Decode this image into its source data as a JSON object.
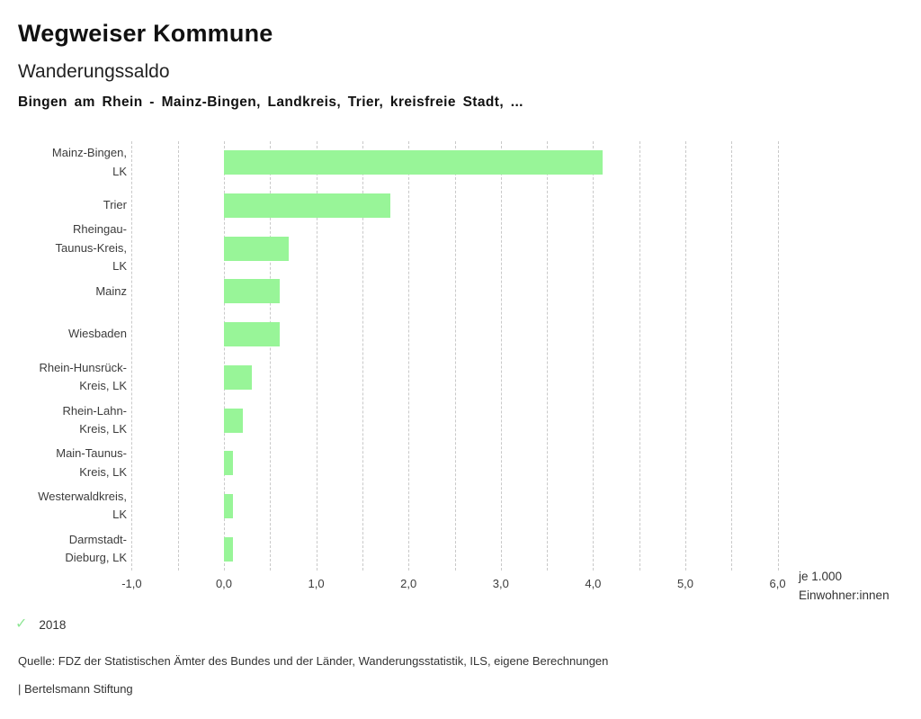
{
  "header": {
    "app_title": "Wegweiser Kommune",
    "chart_title": "Wanderungssaldo",
    "selection_line": "Bingen am Rhein - Mainz-Bingen, Landkreis, Trier, kreisfreie Stadt, ..."
  },
  "chart_data": {
    "type": "bar",
    "orientation": "horizontal",
    "title": "Wanderungssaldo",
    "categories": [
      "Mainz-Bingen, LK",
      "Trier",
      "Rheingau-Taunus-Kreis, LK",
      "Mainz",
      "Wiesbaden",
      "Rhein-Hunsrück-Kreis, LK",
      "Rhein-Lahn-Kreis, LK",
      "Main-Taunus-Kreis, LK",
      "Westerwaldkreis, LK",
      "Darmstadt-Dieburg, LK"
    ],
    "label_lines": [
      [
        "Mainz-Bingen,",
        "LK"
      ],
      [
        "Trier"
      ],
      [
        "Rheingau-",
        "Taunus-Kreis,",
        "LK"
      ],
      [
        "Mainz"
      ],
      [
        "Wiesbaden"
      ],
      [
        "Rhein-Hunsrück-",
        "Kreis, LK"
      ],
      [
        "Rhein-Lahn-",
        "Kreis, LK"
      ],
      [
        "Main-Taunus-",
        "Kreis, LK"
      ],
      [
        "Westerwaldkreis,",
        "LK"
      ],
      [
        "Darmstadt-",
        "Dieburg, LK"
      ]
    ],
    "series": [
      {
        "name": "2018",
        "values": [
          4.1,
          1.8,
          0.7,
          0.6,
          0.6,
          0.3,
          0.2,
          0.1,
          0.1,
          0.1
        ]
      }
    ],
    "xlabel": "je 1.000 Einwohner:innen",
    "unit_lines": [
      "je 1.000",
      "Einwohner:innen"
    ],
    "xlim": [
      -1.0,
      6.0
    ],
    "grid": true,
    "grid_step": 0.5,
    "xticks": {
      "values": [
        -1,
        0,
        1,
        2,
        3,
        4,
        5,
        6
      ],
      "labels": [
        "-1,0",
        "0,0",
        "1,0",
        "2,0",
        "3,0",
        "4,0",
        "5,0",
        "6,0"
      ]
    },
    "bar_color": "#98f598",
    "grid_color": "#c9c9c9",
    "legend_position": "bottom-left"
  },
  "legend": {
    "check_glyph": "✓",
    "check_color": "#8fe695",
    "year": "2018"
  },
  "footer": {
    "source_line": "Quelle: FDZ der Statistischen Ämter des Bundes und der Länder, Wanderungsstatistik, ILS, eigene Berechnungen",
    "attribution_line": "| Bertelsmann Stiftung"
  }
}
